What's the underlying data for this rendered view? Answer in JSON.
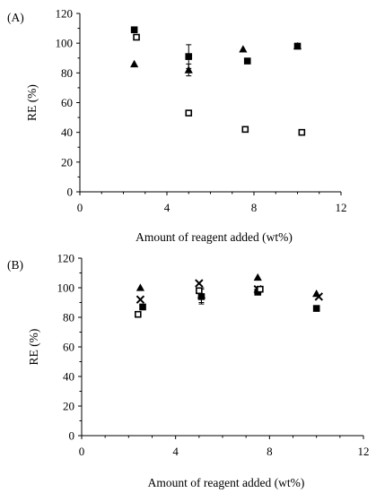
{
  "chart_data": [
    {
      "type": "scatter",
      "panel_label": "(A)",
      "xlabel": "Amount of reagent added (wt%)",
      "ylabel": "RE (%)",
      "xlim": [
        0,
        12
      ],
      "ylim": [
        0,
        120
      ],
      "xticks": [
        0,
        4,
        8,
        12
      ],
      "yticks": [
        0,
        20,
        40,
        60,
        80,
        100,
        120
      ],
      "grid": false,
      "series": [
        {
          "marker": "filled-square",
          "points": [
            {
              "x": 2.5,
              "y": 109
            },
            {
              "x": 5.0,
              "y": 91,
              "err": 8
            },
            {
              "x": 7.7,
              "y": 88
            },
            {
              "x": 10.0,
              "y": 98
            }
          ]
        },
        {
          "marker": "filled-triangle",
          "points": [
            {
              "x": 2.5,
              "y": 86
            },
            {
              "x": 5.0,
              "y": 82,
              "err": 4
            },
            {
              "x": 7.5,
              "y": 96
            },
            {
              "x": 10.0,
              "y": 98
            }
          ]
        },
        {
          "marker": "open-square",
          "points": [
            {
              "x": 2.6,
              "y": 104
            },
            {
              "x": 5.0,
              "y": 53
            },
            {
              "x": 7.6,
              "y": 42
            },
            {
              "x": 10.2,
              "y": 40
            }
          ]
        }
      ]
    },
    {
      "type": "scatter",
      "panel_label": "(B)",
      "xlabel": "Amount of reagent added (wt%)",
      "ylabel": "RE (%)",
      "xlim": [
        0,
        12
      ],
      "ylim": [
        0,
        120
      ],
      "xticks": [
        0,
        4,
        8,
        12
      ],
      "yticks": [
        0,
        20,
        40,
        60,
        80,
        100,
        120
      ],
      "grid": false,
      "series": [
        {
          "marker": "filled-square",
          "points": [
            {
              "x": 2.6,
              "y": 87
            },
            {
              "x": 5.1,
              "y": 94,
              "err": 5
            },
            {
              "x": 7.5,
              "y": 97
            },
            {
              "x": 10.0,
              "y": 86
            }
          ]
        },
        {
          "marker": "filled-triangle",
          "points": [
            {
              "x": 2.5,
              "y": 100
            },
            {
              "x": 5.1,
              "y": 95,
              "err": 5
            },
            {
              "x": 7.5,
              "y": 107
            },
            {
              "x": 10.0,
              "y": 96
            }
          ]
        },
        {
          "marker": "cross",
          "points": [
            {
              "x": 2.5,
              "y": 92
            },
            {
              "x": 5.0,
              "y": 103
            },
            {
              "x": 7.5,
              "y": 99
            },
            {
              "x": 10.1,
              "y": 94
            }
          ]
        },
        {
          "marker": "open-square",
          "points": [
            {
              "x": 2.4,
              "y": 82
            },
            {
              "x": 5.0,
              "y": 98
            },
            {
              "x": 7.6,
              "y": 99
            }
          ]
        }
      ]
    }
  ]
}
